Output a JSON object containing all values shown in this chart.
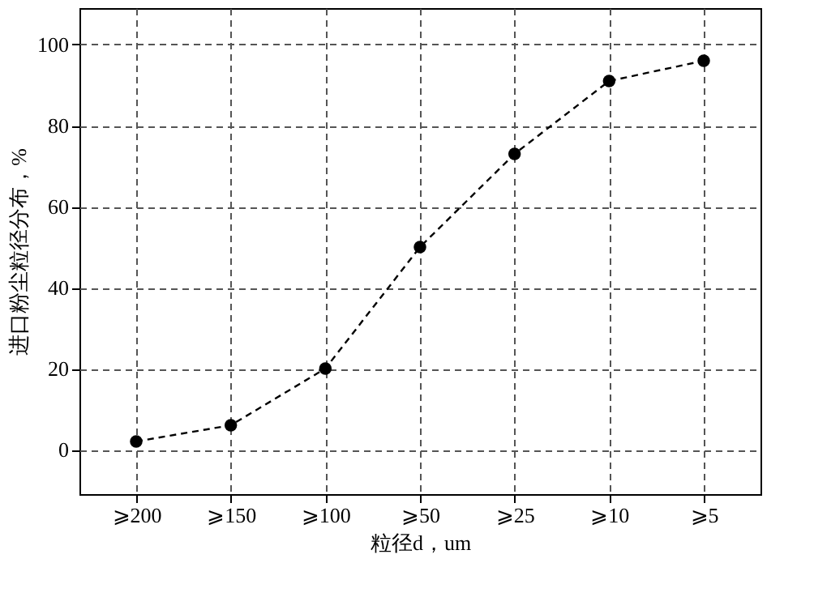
{
  "chart_data": {
    "type": "line",
    "xlabel": "粒径d，um",
    "ylabel": "进口粉尘粒径分布，%",
    "categories": [
      "⩾200",
      "⩾150",
      "⩾100",
      "⩾50",
      "⩾25",
      "⩾10",
      "⩾5"
    ],
    "series": [
      {
        "color": "#000000",
        "values": [
          2,
          6,
          20,
          50,
          73,
          91,
          96
        ]
      }
    ],
    "ylim": [
      -11,
      109
    ],
    "yticks": [
      0,
      20,
      40,
      60,
      80,
      100
    ],
    "grid": true,
    "marker": "circle",
    "line_style": "dashed"
  }
}
